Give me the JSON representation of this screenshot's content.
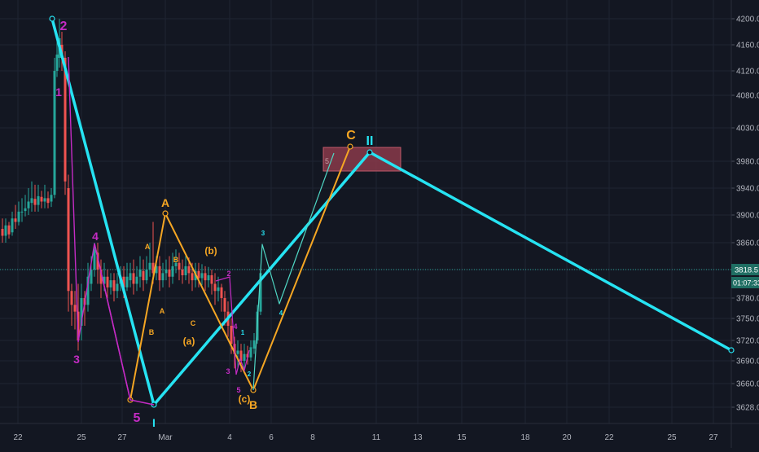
{
  "chart_data": {
    "type": "candlestick",
    "price_axis": {
      "ticks": [
        "4200.0",
        "4160.0",
        "4120.0",
        "4080.0",
        "4030.0",
        "3980.0",
        "3940.0",
        "3900.0",
        "3860.0",
        "3820.0",
        "3780.0",
        "3750.0",
        "3720.0",
        "3690.0",
        "3660.0",
        "3628.0"
      ],
      "range": [
        3600,
        4230
      ]
    },
    "time_axis": {
      "ticks": [
        "22",
        "25",
        "27",
        "Mar",
        "4",
        "6",
        "8",
        "11",
        "13",
        "15",
        "18",
        "20",
        "22",
        "25",
        "27"
      ]
    },
    "current_price": {
      "label": "3818.5",
      "countdown": "01:07:33",
      "value": 3818.5
    },
    "colors": {
      "background": "#131722",
      "bull": "#26a69a",
      "bear": "#ef5350",
      "cyan_path": "#26e3f2",
      "orange_path": "#f5a623",
      "magenta_path": "#c42bc4",
      "target_box": "#8a3a4a",
      "current_line": "#26a69a"
    },
    "wave_labels": {
      "w1": "1",
      "w2": "2",
      "w3": "3",
      "w4": "4",
      "w5": "5",
      "wI": "I",
      "wII": "II",
      "A": "A",
      "B": "B",
      "C": "C",
      "a_paren": "(a)",
      "b_paren": "(b)",
      "c_paren": "(c)",
      "small_A1": "A",
      "small_B1": "B",
      "small_A2": "A",
      "small_B2": "B",
      "small_C": "C",
      "sub1": "1",
      "sub2": "2",
      "sub3": "3",
      "sub4": "4",
      "sub5": "5",
      "m2": "2",
      "m3": "3",
      "m4": "4",
      "m5": "5",
      "box5": "5"
    },
    "series": [
      {
        "name": "cyan",
        "points": [
          [
            4.6,
            4205
          ],
          [
            9.5,
            3625
          ],
          [
            28.5,
            3998
          ],
          [
            50.5,
            3708
          ]
        ]
      },
      {
        "name": "orange",
        "points": [
          [
            9.3,
            3635
          ],
          [
            12.0,
            3900
          ],
          [
            17.5,
            3648
          ],
          [
            25.5,
            4008
          ]
        ]
      },
      {
        "name": "magenta",
        "points": [
          [
            7.0,
            3795
          ],
          [
            9.5,
            3628
          ]
        ]
      },
      {
        "name": "teal_thin",
        "points": [
          [
            18.2,
            3680
          ],
          [
            18.8,
            3860
          ],
          [
            19.6,
            3770
          ],
          [
            24.2,
            4002
          ]
        ]
      }
    ]
  }
}
